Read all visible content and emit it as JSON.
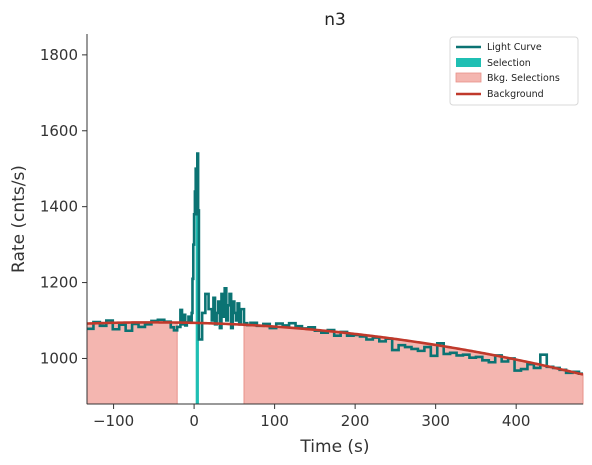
{
  "chart_data": {
    "type": "line",
    "title": "n3",
    "xlabel": "Time (s)",
    "ylabel": "Rate (cnts/s)",
    "xlim": [
      -133,
      483
    ],
    "ylim": [
      880,
      1855
    ],
    "x_ticks": [
      -100,
      0,
      100,
      200,
      300,
      400
    ],
    "x_tick_labels": [
      "−100",
      "0",
      "100",
      "200",
      "300",
      "400"
    ],
    "y_ticks": [
      1000,
      1200,
      1400,
      1600,
      1800
    ],
    "y_tick_labels": [
      "1000",
      "1200",
      "1400",
      "1600",
      "1800"
    ],
    "grid": false,
    "legend_position": "top-right",
    "legend": [
      {
        "label": "Light Curve",
        "kind": "line",
        "color": "#0b7373"
      },
      {
        "label": "Selection",
        "kind": "patch",
        "color": "#1fbfb3"
      },
      {
        "label": "Bkg. Selections",
        "kind": "patch",
        "color": "#f4b6b0"
      },
      {
        "label": "Background",
        "kind": "line",
        "color": "#c0392b"
      }
    ],
    "colors": {
      "light_curve": "#0b7373",
      "selection": "#1fbfb3",
      "bkg_fill": "#f4b6b0",
      "bkg_edge": "#e8928a",
      "background": "#c0392b"
    },
    "selection_interval": [
      2,
      6
    ],
    "bkg_intervals": [
      [
        -133,
        -21
      ],
      [
        62,
        483
      ]
    ],
    "background_poly": [
      1093.8,
      -0.05,
      -0.00048
    ],
    "light_curve_steps": [
      [
        -133,
        1078
      ],
      [
        -125,
        1096
      ],
      [
        -117,
        1086
      ],
      [
        -109,
        1100
      ],
      [
        -101,
        1077
      ],
      [
        -93,
        1089
      ],
      [
        -85,
        1073
      ],
      [
        -77,
        1091
      ],
      [
        -69,
        1083
      ],
      [
        -61,
        1090
      ],
      [
        -53,
        1099
      ],
      [
        -45,
        1102
      ],
      [
        -37,
        1097
      ],
      [
        -29,
        1082
      ],
      [
        -25,
        1074
      ],
      [
        -21,
        1083
      ],
      [
        -17,
        1128
      ],
      [
        -15,
        1090
      ],
      [
        -13,
        1115
      ],
      [
        -11,
        1087
      ],
      [
        -9,
        1095
      ],
      [
        -7,
        1110
      ],
      [
        -5,
        1098
      ],
      [
        -3,
        1120
      ],
      [
        -2,
        1210
      ],
      [
        -1,
        1300
      ],
      [
        0,
        1380
      ],
      [
        1,
        1440
      ],
      [
        2,
        1500
      ],
      [
        3,
        1380
      ],
      [
        4,
        1540
      ],
      [
        5,
        1390
      ],
      [
        6,
        1050
      ],
      [
        10,
        1120
      ],
      [
        14,
        1170
      ],
      [
        18,
        1130
      ],
      [
        22,
        1100
      ],
      [
        24,
        1160
      ],
      [
        26,
        1090
      ],
      [
        28,
        1120
      ],
      [
        30,
        1150
      ],
      [
        32,
        1080
      ],
      [
        34,
        1170
      ],
      [
        36,
        1110
      ],
      [
        38,
        1185
      ],
      [
        40,
        1100
      ],
      [
        42,
        1140
      ],
      [
        44,
        1170
      ],
      [
        46,
        1080
      ],
      [
        48,
        1150
      ],
      [
        50,
        1120
      ],
      [
        52,
        1100
      ],
      [
        54,
        1145
      ],
      [
        56,
        1090
      ],
      [
        58,
        1130
      ],
      [
        62,
        1093
      ],
      [
        66,
        1088
      ],
      [
        70,
        1094
      ],
      [
        78,
        1086
      ],
      [
        86,
        1091
      ],
      [
        94,
        1080
      ],
      [
        102,
        1092
      ],
      [
        110,
        1087
      ],
      [
        118,
        1093
      ],
      [
        126,
        1085
      ],
      [
        134,
        1079
      ],
      [
        142,
        1082
      ],
      [
        150,
        1073
      ],
      [
        158,
        1068
      ],
      [
        166,
        1075
      ],
      [
        174,
        1060
      ],
      [
        182,
        1070
      ],
      [
        190,
        1060
      ],
      [
        198,
        1062
      ],
      [
        206,
        1058
      ],
      [
        214,
        1050
      ],
      [
        222,
        1055
      ],
      [
        230,
        1045
      ],
      [
        238,
        1052
      ],
      [
        246,
        1022
      ],
      [
        254,
        1035
      ],
      [
        262,
        1030
      ],
      [
        270,
        1025
      ],
      [
        278,
        1020
      ],
      [
        286,
        1030
      ],
      [
        294,
        1007
      ],
      [
        302,
        1040
      ],
      [
        310,
        1012
      ],
      [
        318,
        1015
      ],
      [
        326,
        1008
      ],
      [
        334,
        1010
      ],
      [
        342,
        1002
      ],
      [
        350,
        1004
      ],
      [
        358,
        995
      ],
      [
        366,
        990
      ],
      [
        374,
        1008
      ],
      [
        382,
        992
      ],
      [
        390,
        1000
      ],
      [
        398,
        968
      ],
      [
        406,
        972
      ],
      [
        414,
        985
      ],
      [
        422,
        975
      ],
      [
        430,
        1010
      ],
      [
        438,
        978
      ],
      [
        446,
        975
      ],
      [
        454,
        970
      ],
      [
        462,
        962
      ],
      [
        470,
        965
      ],
      [
        478,
        960
      ],
      [
        483,
        960
      ]
    ]
  }
}
